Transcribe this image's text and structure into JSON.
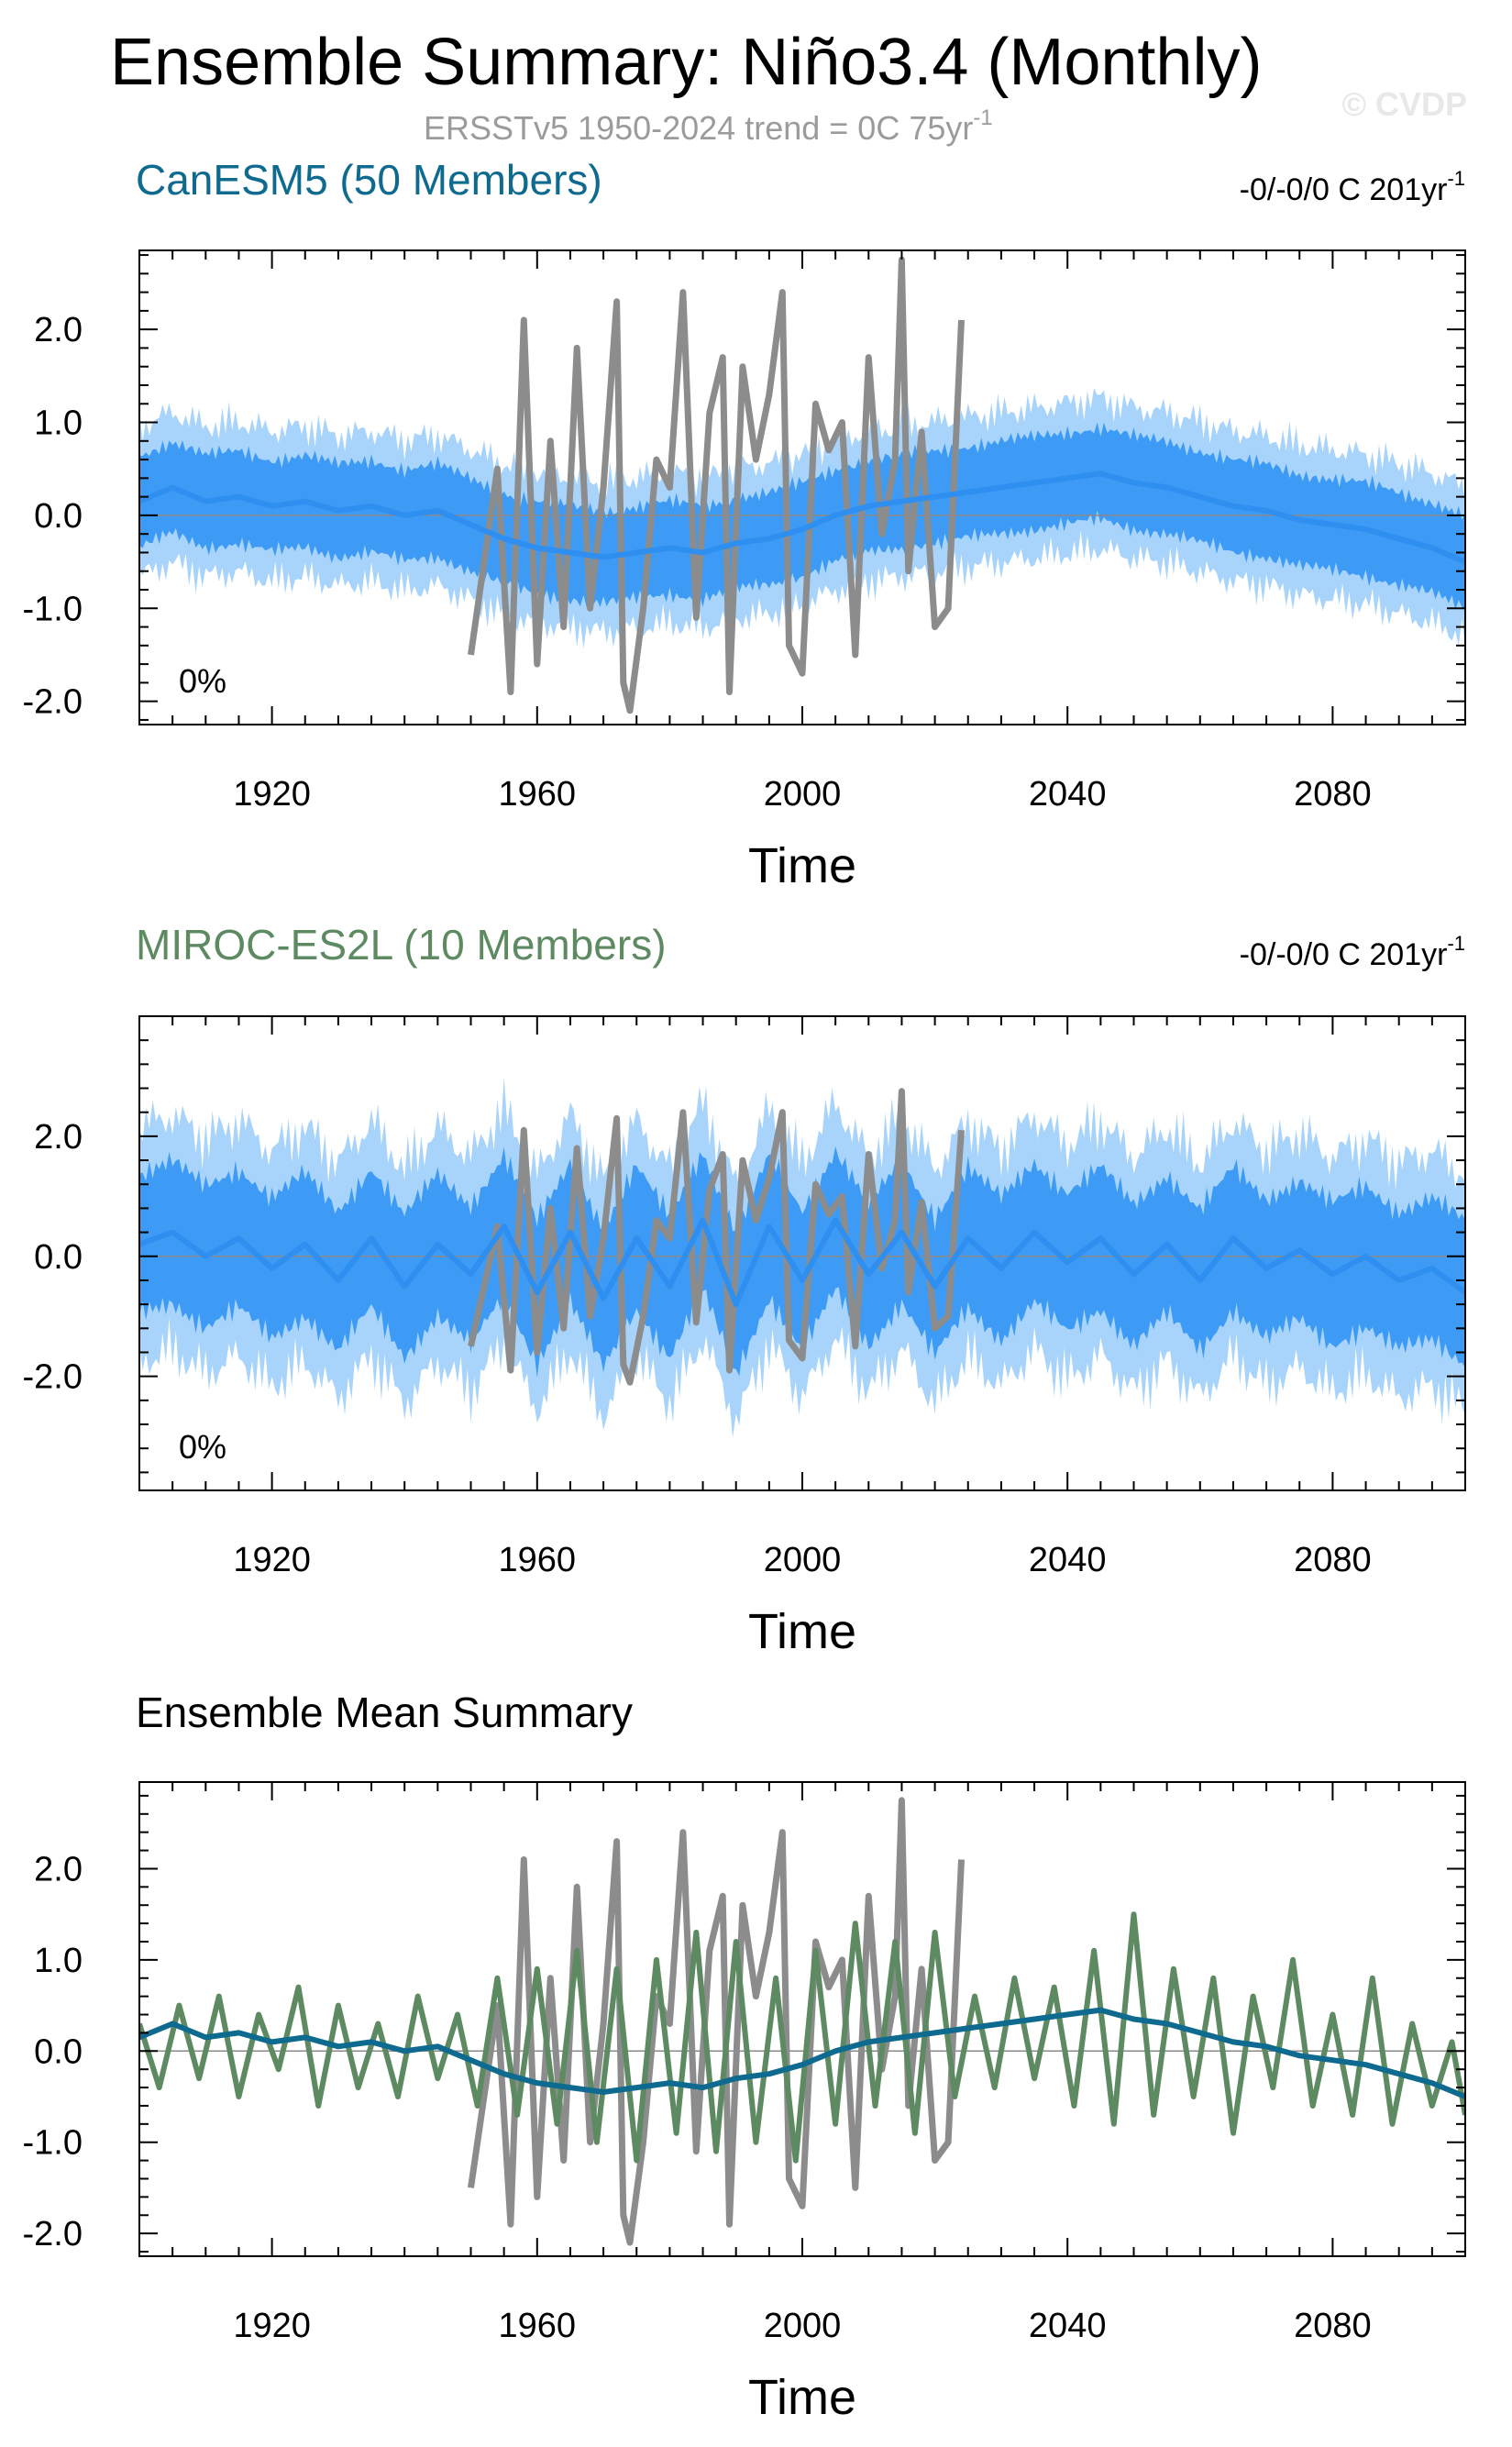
{
  "header": {
    "title": "Ensemble Summary: Niño3.4 (Monthly)",
    "subtitle": "ERSSTv5 1950-2024 trend = 0C 75yr",
    "subtitle_sup": "-1",
    "watermark": "© CVDP"
  },
  "colors": {
    "obs": "#8c8c8c",
    "canesm5": "#0e6a8f",
    "miroc": "#5e8a62",
    "band_outer": "#a8d4fb",
    "band_inner": "#3d9bf5",
    "mean_line": "#2e8ff0"
  },
  "chart_data": [
    {
      "type": "line",
      "title": "CanESM5 (50 Members)",
      "trend_label": "-0/-0/0 C 201yr",
      "trend_sup": "-1",
      "percent_label": "0%",
      "xlabel": "Time",
      "ylabel": "",
      "xlim": [
        1900,
        2100
      ],
      "ylim": [
        -2.25,
        2.85
      ],
      "x_ticks": [
        1920,
        1960,
        2000,
        2040,
        2080
      ],
      "y_ticks": [
        -2.0,
        -1.0,
        0.0,
        1.0,
        2.0
      ],
      "y_tick_labels": [
        "-2.0",
        "-1.0",
        "0.0",
        "1.0",
        "2.0"
      ],
      "series": [
        {
          "role": "ensemble-mean",
          "x": [
            1900,
            1905,
            1910,
            1915,
            1920,
            1925,
            1930,
            1935,
            1940,
            1945,
            1950,
            1955,
            1960,
            1965,
            1970,
            1975,
            1980,
            1985,
            1990,
            1995,
            2000,
            2005,
            2010,
            2015,
            2020,
            2025,
            2030,
            2035,
            2040,
            2045,
            2050,
            2055,
            2060,
            2065,
            2070,
            2075,
            2080,
            2085,
            2090,
            2095,
            2100
          ],
          "values": [
            0.15,
            0.3,
            0.15,
            0.2,
            0.1,
            0.15,
            0.05,
            0.1,
            0.0,
            0.05,
            -0.1,
            -0.25,
            -0.35,
            -0.4,
            -0.45,
            -0.4,
            -0.35,
            -0.4,
            -0.3,
            -0.25,
            -0.15,
            0.0,
            0.1,
            0.15,
            0.2,
            0.25,
            0.3,
            0.35,
            0.4,
            0.45,
            0.35,
            0.3,
            0.2,
            0.1,
            0.05,
            -0.05,
            -0.1,
            -0.15,
            -0.25,
            -0.35,
            -0.5
          ]
        },
        {
          "role": "inner-band-halfwidth",
          "x": [
            1900,
            2100
          ],
          "values": [
            0.55,
            0.55
          ]
        },
        {
          "role": "outer-band-halfwidth",
          "x": [
            1900,
            2100
          ],
          "values": [
            0.95,
            0.95
          ]
        },
        {
          "role": "observations",
          "x": [
            1950,
            1954,
            1956,
            1958,
            1960,
            1962,
            1964,
            1966,
            1968,
            1970,
            1972,
            1973,
            1974,
            1976,
            1978,
            1980,
            1982,
            1984,
            1986,
            1988,
            1989,
            1991,
            1993,
            1995,
            1997,
            1998,
            2000,
            2002,
            2004,
            2006,
            2008,
            2010,
            2012,
            2014,
            2015,
            2016,
            2018,
            2020,
            2022,
            2024
          ],
          "values": [
            -1.5,
            0.5,
            -1.9,
            2.1,
            -1.6,
            0.8,
            -1.2,
            1.8,
            -1.0,
            0.3,
            2.3,
            -1.8,
            -2.1,
            -1.0,
            0.6,
            0.3,
            2.4,
            -1.1,
            1.1,
            1.7,
            -1.9,
            1.6,
            0.6,
            1.3,
            2.4,
            -1.4,
            -1.7,
            1.2,
            0.7,
            1.0,
            -1.5,
            1.7,
            -0.2,
            0.6,
            2.75,
            -0.6,
            0.9,
            -1.2,
            -1.0,
            2.1
          ]
        }
      ]
    },
    {
      "type": "line",
      "title": "MIROC-ES2L (10 Members)",
      "trend_label": "-0/-0/0 C 201yr",
      "trend_sup": "-1",
      "percent_label": "0%",
      "xlabel": "Time",
      "ylabel": "",
      "xlim": [
        1900,
        2100
      ],
      "ylim": [
        -3.9,
        4.0
      ],
      "x_ticks": [
        1920,
        1960,
        2000,
        2040,
        2080
      ],
      "y_ticks": [
        -2.0,
        0.0,
        2.0
      ],
      "y_tick_labels": [
        "-2.0",
        "0.0",
        "2.0"
      ],
      "series": [
        {
          "role": "ensemble-mean",
          "x": [
            1900,
            1905,
            1910,
            1915,
            1920,
            1925,
            1930,
            1935,
            1940,
            1945,
            1950,
            1955,
            1960,
            1965,
            1970,
            1975,
            1980,
            1985,
            1990,
            1995,
            2000,
            2005,
            2010,
            2015,
            2020,
            2025,
            2030,
            2035,
            2040,
            2045,
            2050,
            2055,
            2060,
            2065,
            2070,
            2075,
            2080,
            2085,
            2090,
            2095,
            2100
          ],
          "values": [
            0.2,
            0.4,
            0.0,
            0.3,
            -0.2,
            0.2,
            -0.4,
            0.3,
            -0.5,
            0.2,
            -0.3,
            0.5,
            -0.6,
            0.4,
            -0.7,
            0.3,
            -0.5,
            0.6,
            -0.8,
            0.5,
            -0.4,
            0.6,
            -0.3,
            0.4,
            -0.5,
            0.3,
            -0.2,
            0.4,
            -0.1,
            0.3,
            -0.3,
            0.2,
            -0.4,
            0.3,
            -0.2,
            0.1,
            -0.3,
            0.0,
            -0.4,
            -0.2,
            -0.6
          ]
        },
        {
          "role": "inner-band-halfwidth",
          "x": [
            1900,
            2100
          ],
          "values": [
            1.3,
            1.3
          ]
        },
        {
          "role": "outer-band-halfwidth",
          "x": [
            1900,
            2100
          ],
          "values": [
            2.3,
            2.3
          ]
        },
        {
          "role": "observations",
          "x": [
            1950,
            1954,
            1956,
            1958,
            1960,
            1962,
            1964,
            1966,
            1968,
            1970,
            1972,
            1973,
            1974,
            1976,
            1978,
            1980,
            1982,
            1984,
            1986,
            1988,
            1989,
            1991,
            1993,
            1995,
            1997,
            1998,
            2000,
            2002,
            2004,
            2006,
            2008,
            2010,
            2012,
            2014,
            2015,
            2016,
            2018,
            2020,
            2022,
            2024
          ],
          "values": [
            -1.5,
            0.5,
            -1.9,
            2.1,
            -1.6,
            0.8,
            -1.2,
            1.8,
            -1.0,
            0.3,
            2.3,
            -1.8,
            -2.1,
            -1.0,
            0.6,
            0.3,
            2.4,
            -1.1,
            1.1,
            1.7,
            -1.9,
            1.6,
            0.6,
            1.3,
            2.4,
            -1.4,
            -1.7,
            1.2,
            0.7,
            1.0,
            -1.5,
            1.7,
            -0.2,
            0.6,
            2.75,
            -0.6,
            0.9,
            -1.2,
            -1.0,
            2.1
          ]
        }
      ]
    },
    {
      "type": "line",
      "title": "Ensemble Mean Summary",
      "xlabel": "Time",
      "ylabel": "",
      "xlim": [
        1900,
        2100
      ],
      "ylim": [
        -2.25,
        2.95
      ],
      "x_ticks": [
        1920,
        1960,
        2000,
        2040,
        2080
      ],
      "y_ticks": [
        -2.0,
        -1.0,
        0.0,
        1.0,
        2.0
      ],
      "y_tick_labels": [
        "-2.0",
        "-1.0",
        "0.0",
        "1.0",
        "2.0"
      ],
      "series": [
        {
          "role": "observations",
          "x": [
            1950,
            1954,
            1956,
            1958,
            1960,
            1962,
            1964,
            1966,
            1968,
            1970,
            1972,
            1973,
            1974,
            1976,
            1978,
            1980,
            1982,
            1984,
            1986,
            1988,
            1989,
            1991,
            1993,
            1995,
            1997,
            1998,
            2000,
            2002,
            2004,
            2006,
            2008,
            2010,
            2012,
            2014,
            2015,
            2016,
            2018,
            2020,
            2022,
            2024
          ],
          "values": [
            -1.5,
            0.5,
            -1.9,
            2.1,
            -1.6,
            0.8,
            -1.2,
            1.8,
            -1.0,
            0.3,
            2.3,
            -1.8,
            -2.1,
            -1.0,
            0.6,
            0.3,
            2.4,
            -1.1,
            1.1,
            1.7,
            -1.9,
            1.6,
            0.6,
            1.3,
            2.4,
            -1.4,
            -1.7,
            1.2,
            0.7,
            1.0,
            -1.5,
            1.7,
            -0.2,
            0.6,
            2.75,
            -0.6,
            0.9,
            -1.2,
            -1.0,
            2.1
          ]
        },
        {
          "role": "miroc-es2l-mean",
          "x": [
            1900,
            1903,
            1906,
            1909,
            1912,
            1915,
            1918,
            1921,
            1924,
            1927,
            1930,
            1933,
            1936,
            1939,
            1942,
            1945,
            1948,
            1951,
            1954,
            1957,
            1960,
            1963,
            1966,
            1969,
            1972,
            1975,
            1978,
            1981,
            1984,
            1987,
            1990,
            1993,
            1996,
            1999,
            2002,
            2005,
            2008,
            2011,
            2014,
            2017,
            2020,
            2023,
            2026,
            2029,
            2032,
            2035,
            2038,
            2041,
            2044,
            2047,
            2050,
            2053,
            2056,
            2059,
            2062,
            2065,
            2068,
            2071,
            2074,
            2077,
            2080,
            2083,
            2086,
            2089,
            2092,
            2095,
            2098,
            2100
          ],
          "values": [
            0.3,
            -0.4,
            0.5,
            -0.3,
            0.6,
            -0.5,
            0.4,
            -0.2,
            0.7,
            -0.6,
            0.5,
            -0.4,
            0.3,
            -0.5,
            0.6,
            -0.3,
            0.4,
            -0.6,
            0.8,
            -0.7,
            0.9,
            -0.8,
            1.1,
            -1.0,
            0.9,
            -1.2,
            1.0,
            -0.9,
            1.3,
            -1.1,
            1.2,
            -1.0,
            0.8,
            -1.2,
            1.1,
            -0.8,
            1.4,
            -0.6,
            1.2,
            -0.9,
            1.3,
            -0.5,
            0.6,
            -0.4,
            0.8,
            -0.3,
            0.7,
            -0.6,
            1.1,
            -0.8,
            1.5,
            -0.7,
            0.9,
            -0.5,
            0.8,
            -0.9,
            0.6,
            -0.4,
            1.0,
            -0.6,
            0.4,
            -0.7,
            0.8,
            -0.8,
            0.3,
            -0.6,
            0.1,
            -0.7
          ]
        },
        {
          "role": "canesm5-mean",
          "x": [
            1900,
            1905,
            1910,
            1915,
            1920,
            1925,
            1930,
            1935,
            1940,
            1945,
            1950,
            1955,
            1960,
            1965,
            1970,
            1975,
            1980,
            1985,
            1990,
            1995,
            2000,
            2005,
            2010,
            2015,
            2020,
            2025,
            2030,
            2035,
            2040,
            2045,
            2050,
            2055,
            2060,
            2065,
            2070,
            2075,
            2080,
            2085,
            2090,
            2095,
            2100
          ],
          "values": [
            0.15,
            0.3,
            0.15,
            0.2,
            0.1,
            0.15,
            0.05,
            0.1,
            0.0,
            0.05,
            -0.1,
            -0.25,
            -0.35,
            -0.4,
            -0.45,
            -0.4,
            -0.35,
            -0.4,
            -0.3,
            -0.25,
            -0.15,
            0.0,
            0.1,
            0.15,
            0.2,
            0.25,
            0.3,
            0.35,
            0.4,
            0.45,
            0.35,
            0.3,
            0.2,
            0.1,
            0.05,
            -0.05,
            -0.1,
            -0.15,
            -0.25,
            -0.35,
            -0.5
          ]
        }
      ]
    }
  ]
}
